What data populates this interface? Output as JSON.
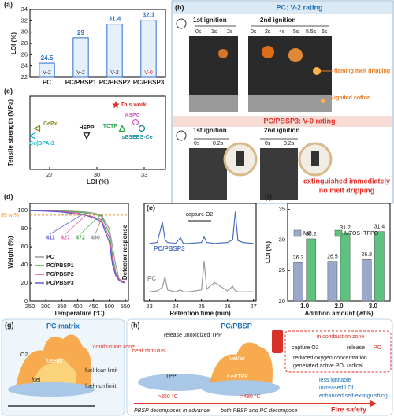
{
  "chart_data": [
    {
      "type": "bar",
      "label": "(a)",
      "ylabel": "LOI (%)",
      "categories": [
        "PC",
        "PC/PBSP1",
        "PC/PBSP2",
        "PC/PBSP3"
      ],
      "values": [
        24.5,
        29,
        31.4,
        32.1
      ],
      "ratings": [
        "V-2",
        "V-2",
        "V-2",
        "V-0"
      ],
      "rating_colors": [
        "#333333",
        "#333333",
        "#333333",
        "#e0302a"
      ],
      "color": "#2f6fd0",
      "ylim": [
        22,
        34
      ],
      "yticks": [
        22,
        24,
        26,
        28,
        30,
        32,
        34
      ]
    },
    {
      "type": "scatter",
      "label": "(c)",
      "xlabel": "LOI (%)",
      "ylabel": "Tensile strength (MPa)",
      "xlim": [
        25.75,
        34.35
      ],
      "xticks": [
        27,
        30,
        33
      ],
      "ylim": [
        50,
        70
      ],
      "series": [
        {
          "name": "Ce(DPA)3",
          "color": "#1fb3c9",
          "marker": "tri-left",
          "x": [
            25.9
          ],
          "values": [
            59.2
          ]
        },
        {
          "name": "CePx",
          "color": "#8a8a1e",
          "marker": "tri-left",
          "x": [
            26.2
          ],
          "values": [
            61.2
          ]
        },
        {
          "name": "HSPP",
          "color": "#222222",
          "marker": "tri-down",
          "x": [
            29.35
          ],
          "values": [
            59.2
          ]
        },
        {
          "name": "ASPC",
          "color": "#d660c8",
          "marker": "circle",
          "x": [
            32.45
          ],
          "values": [
            62.9
          ]
        },
        {
          "name": "TCTP",
          "color": "#2aa84a",
          "marker": "tri-up",
          "x": [
            31.6
          ],
          "values": [
            61.2
          ]
        },
        {
          "name": "sBSEBS-Ce",
          "color": "#1a8a9a",
          "marker": "circle",
          "x": [
            32.85
          ],
          "values": [
            61.2
          ]
        },
        {
          "name": "This work",
          "color": "#e0302a",
          "marker": "star",
          "x": [
            31.2
          ],
          "values": [
            67.6
          ]
        }
      ]
    },
    {
      "type": "line",
      "label": "(d)",
      "xlabel": "Temperature (°C)",
      "ylabel": "Weight (%)",
      "xlim": [
        250,
        560
      ],
      "xticks": [
        250,
        300,
        350,
        400,
        450,
        500,
        550
      ],
      "ylim": [
        0,
        108
      ],
      "yticks": [
        0,
        20,
        40,
        60,
        80,
        100
      ],
      "x": [
        250,
        300,
        350,
        400,
        425,
        450,
        475,
        500,
        510,
        520,
        530,
        540,
        550
      ],
      "series": [
        {
          "name": "PC",
          "color": "#9a9a9a",
          "values": [
            100,
            100,
            99.8,
            99,
            98.5,
            97.5,
            95,
            80,
            60,
            40,
            25,
            22,
            21
          ]
        },
        {
          "name": "PC/PBSP1",
          "color": "#4caf50",
          "values": [
            100,
            100,
            99.5,
            98.5,
            97.5,
            96,
            94,
            75,
            50,
            32,
            24,
            22,
            21
          ]
        },
        {
          "name": "PC/PBSP2",
          "color": "#e05aa0",
          "values": [
            100,
            99.8,
            99,
            97.5,
            95,
            93,
            90,
            70,
            45,
            30,
            24,
            22,
            21
          ]
        },
        {
          "name": "PC/PBSP3",
          "color": "#5a5ad8",
          "values": [
            100,
            99.5,
            98.5,
            96,
            95,
            92,
            88,
            65,
            40,
            28,
            23,
            21,
            20
          ]
        }
      ],
      "reference_line": {
        "value": 95,
        "label": "95 wt%",
        "color": "#f08a24"
      },
      "t5_labels": [
        411,
        427,
        472,
        480
      ],
      "t5_colors": [
        "#5a5ad8",
        "#e05aa0",
        "#4caf50",
        "#888888"
      ]
    },
    {
      "type": "line",
      "label": "(e)",
      "xlabel": "Retention time (min)",
      "ylabel": "Detector response",
      "annotation": "capture O2",
      "xlim": [
        22.8,
        27.1
      ],
      "xticks": [
        23,
        24,
        25,
        26,
        27
      ],
      "ylim": [
        0,
        10.5
      ],
      "x": [
        23,
        23.3,
        23.5,
        23.6,
        23.7,
        24,
        24.2,
        24.3,
        24.5,
        25,
        25.1,
        25.2,
        25.5,
        26,
        26.2,
        26.3,
        26.4,
        26.6,
        27
      ],
      "series": [
        {
          "name": "PC/PBSP3",
          "color": "#4a6fc0",
          "values": [
            6.2,
            6.3,
            8.5,
            6.6,
            6.3,
            6.2,
            6.8,
            6.2,
            6.2,
            6.3,
            6.9,
            6.3,
            6.2,
            6.3,
            6.6,
            9.6,
            6.5,
            6.3,
            6.2
          ]
        },
        {
          "name": "PC",
          "color": "#9a9a9a",
          "values": [
            1,
            1.1,
            1.5,
            2.6,
            1.2,
            1,
            1.2,
            1,
            1,
            1.2,
            4.3,
            1.3,
            2,
            1.1,
            1.6,
            1.1,
            1,
            1,
            1
          ]
        }
      ]
    },
    {
      "type": "bar",
      "label": "(f)",
      "xlabel": "Addition amount (wt%)",
      "ylabel": "LOI (%)",
      "categories": [
        "1.0",
        "2.0",
        "3.0"
      ],
      "ylim": [
        20,
        36
      ],
      "yticks": [
        20,
        25,
        30,
        35
      ],
      "series": [
        {
          "name": "MP",
          "color": "#9aa9c9",
          "values": [
            26.3,
            26.5,
            26.8
          ]
        },
        {
          "name": "MTOS+TPPO",
          "color": "#5cc27e",
          "values": [
            30.2,
            31.2,
            31.4
          ]
        }
      ]
    }
  ],
  "panel_b": {
    "label": "(b)",
    "top_title": "PC: V-2 rating",
    "top_first": "1st ignition",
    "top_second": "2nd ignition",
    "top_times_1": [
      "0s",
      "1s",
      "2s"
    ],
    "top_times_2": [
      "0s",
      "2s",
      "4s",
      "5s",
      "5.5s",
      "6s"
    ],
    "callouts": [
      "flaming melt dripping",
      "ignited cotton"
    ],
    "bottom_title": "PC/PBSP3: V-0 rating",
    "bottom_first": "1st ignition",
    "bottom_second": "2nd ignition",
    "bottom_times_1": [
      "0s",
      "0.2s"
    ],
    "bottom_times_2": [
      "0s",
      "0.2s"
    ],
    "bottom_note": [
      "extinguished immediately",
      "no melt dripping"
    ]
  },
  "panel_g": {
    "label": "(g)",
    "title": "PC matrix",
    "combustion": "combustion zone",
    "o2": "O2",
    "fuel_air": "fuel-air",
    "fuel": "fuel",
    "lean": "fuel-lean limit",
    "rich": "fuel-rich limit"
  },
  "panel_h": {
    "label": "(h)",
    "title": "PC/PBSP",
    "release_tpp": "release unoxidized TPP",
    "heat": "heat stimulus",
    "tpp": "TPP",
    "fuel_air": "fuel/air",
    "fuel_tpp": "fuel/TPP",
    "zone": "in combustion zone",
    "capture": "capture O2",
    "release": "release",
    "po": "PO·",
    "note1": "reduced oxygen concentration",
    "note2": "generated active PO· radical",
    "benefits": [
      "less ignitable",
      "increased LOI",
      "enhanced self-extinguishing"
    ],
    "t1": ">350 °C",
    "t2": ">480 °C",
    "fire_safety": "Fire safety",
    "stage1": "PBSP decomposes in advance",
    "stage2": "both PBSP and PC decompose"
  }
}
